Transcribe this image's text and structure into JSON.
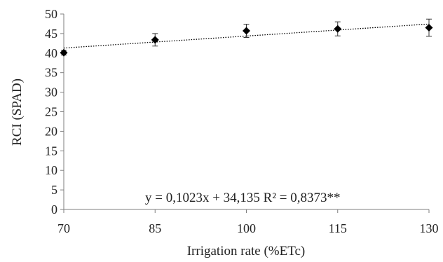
{
  "chart_data": {
    "type": "scatter",
    "xlabel": "Irrigation rate (%ETc)",
    "ylabel": "RCI (SPAD)",
    "xlim": [
      70,
      130
    ],
    "ylim": [
      0,
      50
    ],
    "x_ticks": [
      70,
      85,
      100,
      115,
      130
    ],
    "y_ticks": [
      0,
      5,
      10,
      15,
      20,
      25,
      30,
      35,
      40,
      45,
      50
    ],
    "grid": false,
    "series": [
      {
        "x": [
          70,
          85,
          100,
          115,
          130
        ],
        "y": [
          40.1,
          43.4,
          45.7,
          46.2,
          46.5
        ],
        "error": [
          0.6,
          1.6,
          1.7,
          1.8,
          2.2
        ],
        "marker": "diamond",
        "color": "#000000"
      }
    ],
    "trendline": {
      "type": "linear",
      "slope": 0.1023,
      "intercept": 34.135,
      "style": "dotted",
      "color": "#000000"
    },
    "annotations": [
      {
        "text": "y = 0,1023x + 34,135    R² = 0,8373**"
      }
    ]
  }
}
